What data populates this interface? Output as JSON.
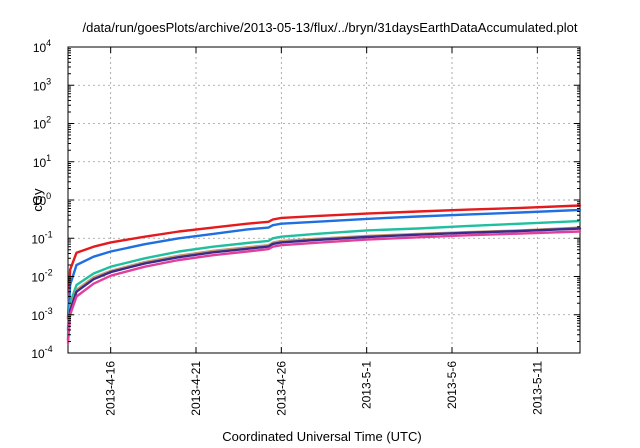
{
  "chart_data": {
    "type": "line",
    "title": "/data/run/goesPlots/archive/2013-05-13/flux/../bryn/31daysEarthDataAccumulated.plot",
    "xlabel": "Coordinated Universal Time (UTC)",
    "ylabel": "cGy",
    "y_scale": "log",
    "ylim": [
      0.0001,
      10000
    ],
    "y_ticks": [
      {
        "base": "10",
        "exp": "-4",
        "value": 0.0001
      },
      {
        "base": "10",
        "exp": "-3",
        "value": 0.001
      },
      {
        "base": "10",
        "exp": "-2",
        "value": 0.01
      },
      {
        "base": "10",
        "exp": "-1",
        "value": 0.1
      },
      {
        "base": "10",
        "exp": "0",
        "value": 1
      },
      {
        "base": "10",
        "exp": "1",
        "value": 10
      },
      {
        "base": "10",
        "exp": "2",
        "value": 100
      },
      {
        "base": "10",
        "exp": "3",
        "value": 1000
      },
      {
        "base": "10",
        "exp": "4",
        "value": 10000
      }
    ],
    "xlim": [
      "2013-04-13T12:00",
      "2013-05-13T12:00"
    ],
    "x_ticks": [
      "2013-4-16",
      "2013-4-21",
      "2013-4-26",
      "2013-5-1",
      "2013-5-6",
      "2013-5-11"
    ],
    "grid": true,
    "series": [
      {
        "color": "#e41a1c",
        "x": [
          "2013-04-13T12:00",
          "2013-04-13T15:00",
          "2013-04-14T00:00",
          "2013-04-15T00:00",
          "2013-04-16T00:00",
          "2013-04-18T00:00",
          "2013-04-20T00:00",
          "2013-04-22T00:00",
          "2013-04-24T00:00",
          "2013-04-25T06:00",
          "2013-04-25T12:00",
          "2013-04-26T00:00",
          "2013-04-28T00:00",
          "2013-05-01T00:00",
          "2013-05-04T00:00",
          "2013-05-07T00:00",
          "2013-05-10T00:00",
          "2013-05-13T12:00"
        ],
        "values": [
          0.0008,
          0.015,
          0.042,
          0.06,
          0.078,
          0.11,
          0.15,
          0.19,
          0.24,
          0.27,
          0.31,
          0.34,
          0.38,
          0.44,
          0.5,
          0.56,
          0.62,
          0.72
        ]
      },
      {
        "color": "#1f6fe0",
        "x": [
          "2013-04-13T12:00",
          "2013-04-13T15:00",
          "2013-04-14T00:00",
          "2013-04-15T00:00",
          "2013-04-16T00:00",
          "2013-04-18T00:00",
          "2013-04-20T00:00",
          "2013-04-22T00:00",
          "2013-04-24T00:00",
          "2013-04-25T06:00",
          "2013-04-25T12:00",
          "2013-04-26T00:00",
          "2013-04-28T00:00",
          "2013-05-01T00:00",
          "2013-05-04T00:00",
          "2013-05-07T00:00",
          "2013-05-10T00:00",
          "2013-05-13T12:00"
        ],
        "values": [
          0.0004,
          0.006,
          0.02,
          0.033,
          0.045,
          0.07,
          0.1,
          0.13,
          0.17,
          0.19,
          0.22,
          0.24,
          0.27,
          0.32,
          0.37,
          0.42,
          0.47,
          0.55
        ]
      },
      {
        "color": "#1fbf9f",
        "x": [
          "2013-04-13T12:00",
          "2013-04-13T15:00",
          "2013-04-14T00:00",
          "2013-04-15T00:00",
          "2013-04-16T00:00",
          "2013-04-18T00:00",
          "2013-04-20T00:00",
          "2013-04-22T00:00",
          "2013-04-24T00:00",
          "2013-04-25T06:00",
          "2013-04-25T12:00",
          "2013-04-26T00:00",
          "2013-04-28T00:00",
          "2013-05-01T00:00",
          "2013-05-04T00:00",
          "2013-05-07T00:00",
          "2013-05-10T00:00",
          "2013-05-13T12:00"
        ],
        "values": [
          0.0003,
          0.002,
          0.006,
          0.012,
          0.018,
          0.03,
          0.045,
          0.06,
          0.075,
          0.085,
          0.1,
          0.11,
          0.13,
          0.16,
          0.18,
          0.21,
          0.24,
          0.28
        ]
      },
      {
        "color": "#c49a6c",
        "x": [
          "2013-04-13T12:00",
          "2013-04-13T15:00",
          "2013-04-14T00:00",
          "2013-04-15T00:00",
          "2013-04-16T00:00",
          "2013-04-18T00:00",
          "2013-04-20T00:00",
          "2013-04-22T00:00",
          "2013-04-24T00:00",
          "2013-04-25T06:00",
          "2013-04-25T12:00",
          "2013-04-26T00:00",
          "2013-04-28T00:00",
          "2013-05-01T00:00",
          "2013-05-04T00:00",
          "2013-05-07T00:00",
          "2013-05-10T00:00",
          "2013-05-13T12:00"
        ],
        "values": [
          0.00025,
          0.0015,
          0.0045,
          0.0095,
          0.014,
          0.024,
          0.035,
          0.047,
          0.058,
          0.066,
          0.077,
          0.085,
          0.097,
          0.115,
          0.13,
          0.145,
          0.16,
          0.19
        ]
      },
      {
        "color": "#3b2a8c",
        "x": [
          "2013-04-13T12:00",
          "2013-04-13T15:00",
          "2013-04-14T00:00",
          "2013-04-15T00:00",
          "2013-04-16T00:00",
          "2013-04-18T00:00",
          "2013-04-20T00:00",
          "2013-04-22T00:00",
          "2013-04-24T00:00",
          "2013-04-25T06:00",
          "2013-04-25T12:00",
          "2013-04-26T00:00",
          "2013-04-28T00:00",
          "2013-05-01T00:00",
          "2013-05-04T00:00",
          "2013-05-07T00:00",
          "2013-05-10T00:00",
          "2013-05-13T12:00"
        ],
        "values": [
          0.00022,
          0.0013,
          0.004,
          0.0085,
          0.013,
          0.022,
          0.032,
          0.043,
          0.053,
          0.061,
          0.071,
          0.078,
          0.09,
          0.108,
          0.124,
          0.14,
          0.155,
          0.18
        ]
      },
      {
        "color": "#e0409b",
        "x": [
          "2013-04-13T12:00",
          "2013-04-13T15:00",
          "2013-04-14T00:00",
          "2013-04-15T00:00",
          "2013-04-16T00:00",
          "2013-04-18T00:00",
          "2013-04-20T00:00",
          "2013-04-22T00:00",
          "2013-04-24T00:00",
          "2013-04-25T06:00",
          "2013-04-25T12:00",
          "2013-04-26T00:00",
          "2013-04-28T00:00",
          "2013-05-01T00:00",
          "2013-05-04T00:00",
          "2013-05-07T00:00",
          "2013-05-10T00:00",
          "2013-05-13T12:00"
        ],
        "values": [
          0.00018,
          0.001,
          0.003,
          0.0065,
          0.0105,
          0.018,
          0.027,
          0.036,
          0.045,
          0.052,
          0.06,
          0.066,
          0.076,
          0.092,
          0.106,
          0.12,
          0.132,
          0.15
        ]
      }
    ]
  }
}
